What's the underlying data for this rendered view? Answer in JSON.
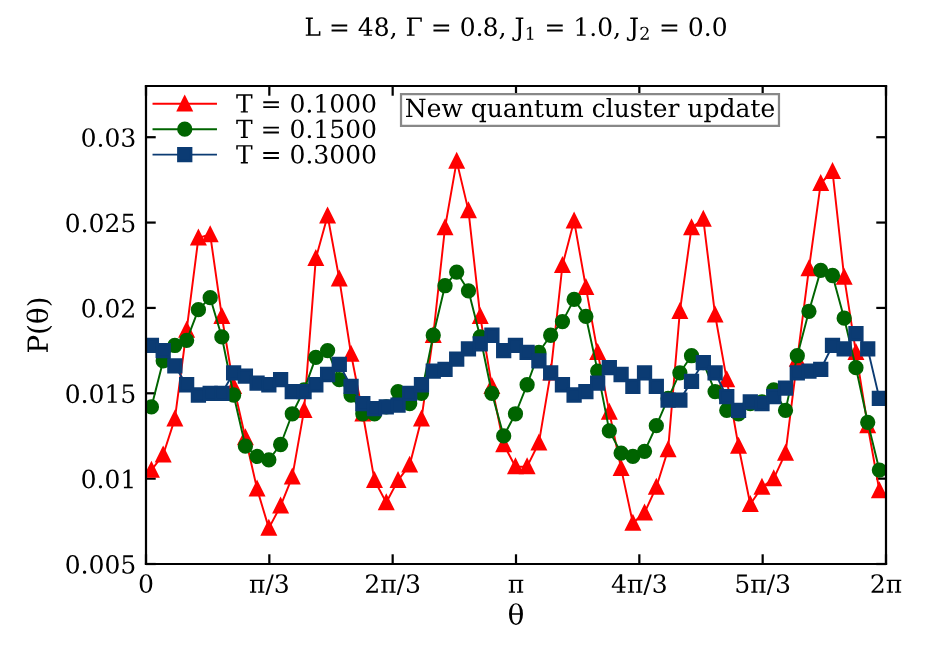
{
  "chart_data": {
    "type": "line",
    "title": "L = 48, Γ = 0.8, J$_{1}$ = 1.0, J$_{2}$ = 0.0",
    "xlabel": "θ",
    "ylabel": "P(θ)",
    "annotations": [
      "New quantum cluster update"
    ],
    "x": [
      0.046,
      0.146,
      0.245,
      0.345,
      0.445,
      0.545,
      0.644,
      0.744,
      0.844,
      0.943,
      1.043,
      1.143,
      1.242,
      1.342,
      1.442,
      1.542,
      1.641,
      1.741,
      1.841,
      1.94,
      2.04,
      2.14,
      2.239,
      2.339,
      2.439,
      2.539,
      2.638,
      2.738,
      2.838,
      2.937,
      3.037,
      3.137,
      3.236,
      3.336,
      3.436,
      3.536,
      3.635,
      3.735,
      3.835,
      3.934,
      4.034,
      4.134,
      4.233,
      4.333,
      4.433,
      4.533,
      4.632,
      4.732,
      4.832,
      4.931,
      5.031,
      5.131,
      5.23,
      5.33,
      5.43,
      5.53,
      5.629,
      5.729,
      5.829,
      5.928,
      6.028,
      6.128,
      6.227
    ],
    "series": [
      {
        "name": "T = 0.1000",
        "color": "#ff0000",
        "marker": "triangle",
        "values": [
          0.0105,
          0.0114,
          0.0135,
          0.0187,
          0.0241,
          0.0243,
          0.0195,
          0.0154,
          0.0124,
          0.0094,
          0.0071,
          0.0084,
          0.0101,
          0.014,
          0.0229,
          0.0254,
          0.0217,
          0.0173,
          0.0138,
          0.0099,
          0.0086,
          0.0099,
          0.0108,
          0.0135,
          0.0184,
          0.0247,
          0.0286,
          0.0257,
          0.0195,
          0.0154,
          0.012,
          0.0107,
          0.0107,
          0.0121,
          0.0162,
          0.0225,
          0.0251,
          0.0212,
          0.0174,
          0.0139,
          0.0106,
          0.0074,
          0.008,
          0.0095,
          0.0117,
          0.0198,
          0.0247,
          0.0252,
          0.0196,
          0.0158,
          0.0119,
          0.0085,
          0.0095,
          0.01,
          0.0115,
          0.017,
          0.0223,
          0.0273,
          0.028,
          0.0218,
          0.0174,
          0.0131,
          0.0093
        ]
      },
      {
        "name": "T = 0.1500",
        "color": "#006400",
        "marker": "circle",
        "values": [
          0.0142,
          0.0169,
          0.0178,
          0.0181,
          0.0199,
          0.0206,
          0.0183,
          0.0149,
          0.0119,
          0.0113,
          0.0111,
          0.012,
          0.0138,
          0.0152,
          0.0171,
          0.0175,
          0.0158,
          0.0149,
          0.0138,
          0.0138,
          0.0142,
          0.0151,
          0.0144,
          0.015,
          0.0184,
          0.0213,
          0.0221,
          0.021,
          0.0183,
          0.015,
          0.0125,
          0.0138,
          0.0155,
          0.0174,
          0.0184,
          0.0192,
          0.0205,
          0.0195,
          0.0163,
          0.0128,
          0.0115,
          0.0113,
          0.0116,
          0.0131,
          0.0147,
          0.0162,
          0.0172,
          0.0168,
          0.0151,
          0.014,
          0.0138,
          0.0144,
          0.0145,
          0.0152,
          0.014,
          0.0172,
          0.0198,
          0.0222,
          0.0219,
          0.0194,
          0.0165,
          0.0133,
          0.0105
        ]
      },
      {
        "name": "T = 0.3000",
        "color": "#0b3b73",
        "marker": "square",
        "values": [
          0.0178,
          0.0175,
          0.0166,
          0.0155,
          0.0149,
          0.015,
          0.015,
          0.0162,
          0.016,
          0.0156,
          0.0155,
          0.0158,
          0.0151,
          0.0151,
          0.0155,
          0.0161,
          0.0167,
          0.0154,
          0.0144,
          0.0141,
          0.0142,
          0.0143,
          0.015,
          0.0155,
          0.0163,
          0.0164,
          0.017,
          0.0176,
          0.0179,
          0.0184,
          0.0175,
          0.0178,
          0.0174,
          0.0169,
          0.0162,
          0.0155,
          0.0149,
          0.0151,
          0.0156,
          0.0165,
          0.0161,
          0.0154,
          0.0162,
          0.0154,
          0.0146,
          0.0146,
          0.0157,
          0.0168,
          0.0162,
          0.0148,
          0.014,
          0.0145,
          0.0144,
          0.0148,
          0.0153,
          0.0162,
          0.0163,
          0.0164,
          0.0178,
          0.0176,
          0.0185,
          0.0176,
          0.0147
        ]
      }
    ],
    "xlim": [
      0,
      6.2832
    ],
    "xticks": [
      0,
      {
        "value": 1.0472,
        "label": "π/3"
      },
      {
        "value": 2.0944,
        "label": "2π/3"
      },
      {
        "value": 3.1416,
        "label": "π"
      },
      {
        "value": 4.1888,
        "label": "4π/3"
      },
      {
        "value": 5.236,
        "label": "5π/3"
      },
      {
        "value": 6.2832,
        "label": "2π"
      }
    ],
    "ylim": [
      0.005,
      0.033
    ],
    "yticks": [
      0.005,
      0.01,
      0.015,
      0.02,
      0.025,
      0.03
    ],
    "legend": "top left",
    "grid": false,
    "line_style": "solid"
  }
}
